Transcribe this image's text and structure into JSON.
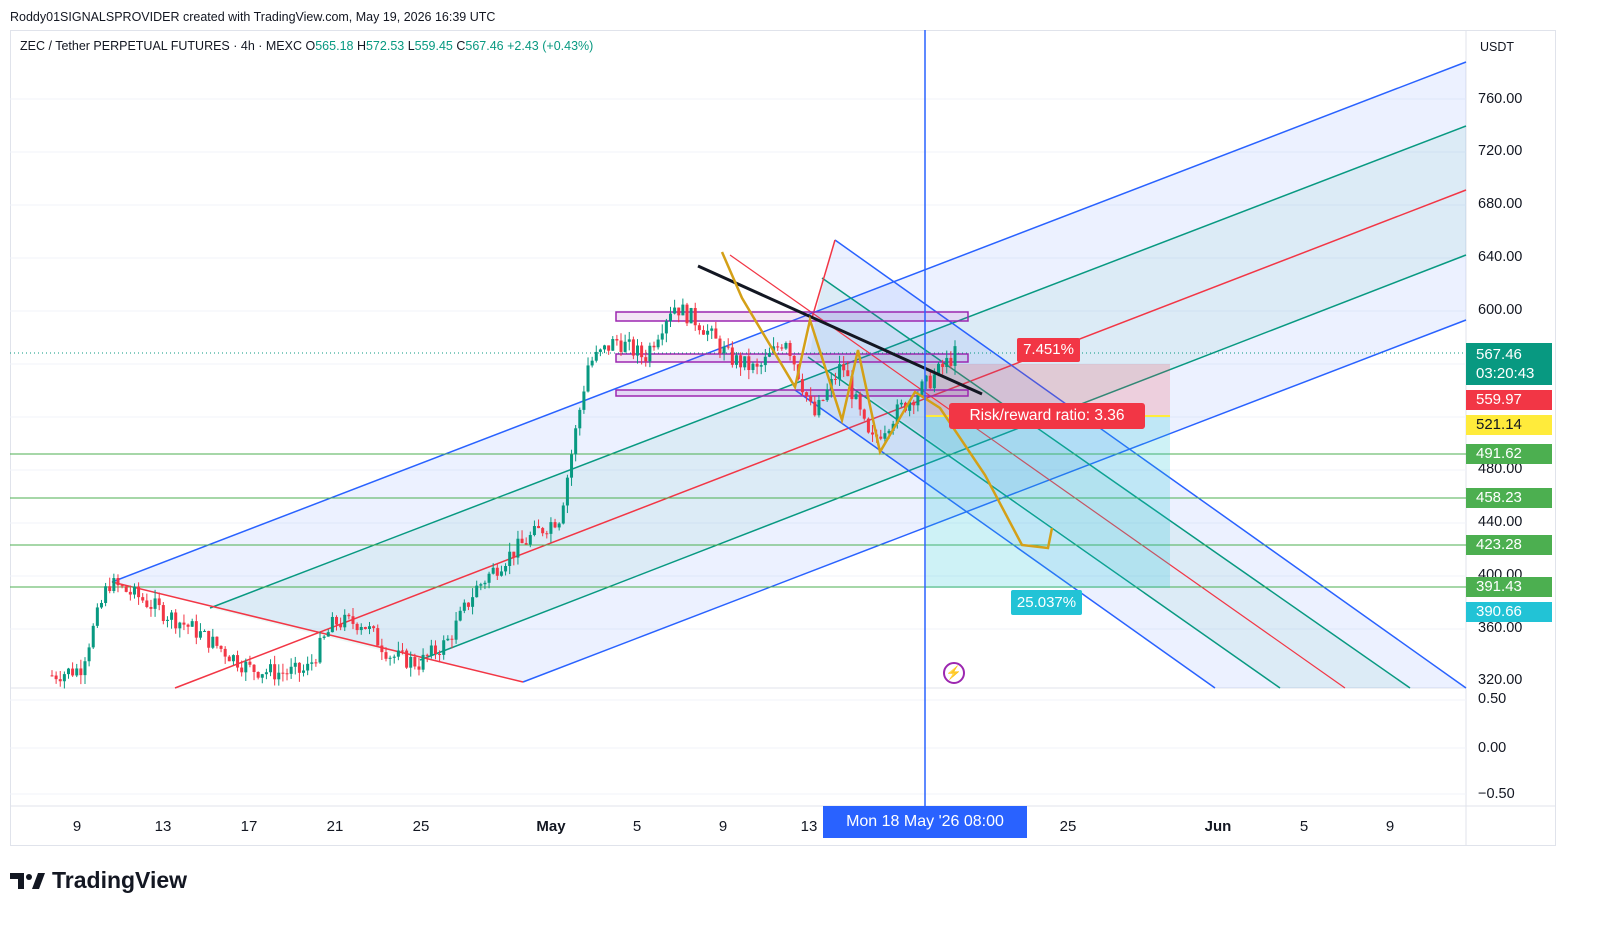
{
  "header": {
    "author_line": "Roddy01SIGNALSPROVIDER created with TradingView.com, May 19, 2026 16:39 UTC"
  },
  "symbol": {
    "name": "ZEC / Tether PERPETUAL FUTURES · 4h · MEXC",
    "open_label": "O",
    "open": "565.18",
    "high_label": "H",
    "high": "572.53",
    "low_label": "L",
    "low": "559.45",
    "close_label": "C",
    "close": "567.46",
    "change": "+2.43 (+0.43%)"
  },
  "price_axis": {
    "currency": "USDT",
    "ticks": [
      "760.00",
      "720.00",
      "680.00",
      "640.00",
      "600.00",
      "480.00",
      "440.00",
      "400.00",
      "360.00",
      "320.00"
    ]
  },
  "oscillator_axis": {
    "ticks": [
      "0.50",
      "0.00",
      "−0.50"
    ]
  },
  "time_axis": {
    "ticks": [
      "9",
      "13",
      "17",
      "21",
      "25",
      "May",
      "5",
      "9",
      "13",
      "25",
      "Jun",
      "5",
      "9"
    ],
    "crosshair_label": "Mon 18 May '26   08:00"
  },
  "price_labels": [
    {
      "value": "567.46",
      "sub": "03:20:43",
      "color": "#089981"
    },
    {
      "value": "559.97",
      "color": "#f23645"
    },
    {
      "value": "521.14",
      "color": "#ffeb3b"
    },
    {
      "value": "491.62",
      "color": "#4caf50"
    },
    {
      "value": "458.23",
      "color": "#4caf50"
    },
    {
      "value": "423.28",
      "color": "#4caf50"
    },
    {
      "value": "391.43",
      "color": "#4caf50"
    },
    {
      "value": "390.66",
      "color": "#22c3d6"
    }
  ],
  "position_tool": {
    "stop_pct": "7.451%",
    "risk_reward": "Risk/reward ratio: 3.36",
    "target_pct": "25.037%"
  },
  "brand": {
    "name": "TradingView"
  },
  "chart_data": {
    "type": "line",
    "title": "ZEC / Tether PERPETUAL FUTURES · 4h · MEXC",
    "ylim": [
      320,
      780
    ],
    "horizontal_levels": [
      491.62,
      458.23,
      423.28,
      391.43
    ],
    "last_price": 567.46,
    "closes": [
      {
        "x": "Apr 8",
        "y": 325
      },
      {
        "x": "Apr 9",
        "y": 330
      },
      {
        "x": "Apr 10",
        "y": 395
      },
      {
        "x": "Apr 12",
        "y": 385
      },
      {
        "x": "Apr 14",
        "y": 372
      },
      {
        "x": "Apr 16",
        "y": 360
      },
      {
        "x": "Apr 18",
        "y": 345
      },
      {
        "x": "Apr 20",
        "y": 330
      },
      {
        "x": "Apr 22",
        "y": 327
      },
      {
        "x": "Apr 24",
        "y": 328
      },
      {
        "x": "Apr 26",
        "y": 365
      },
      {
        "x": "Apr 28",
        "y": 365
      },
      {
        "x": "Apr 29",
        "y": 340
      },
      {
        "x": "Apr 30",
        "y": 334
      },
      {
        "x": "May 1",
        "y": 350
      },
      {
        "x": "May 2",
        "y": 390
      },
      {
        "x": "May 3",
        "y": 412
      },
      {
        "x": "May 4",
        "y": 430
      },
      {
        "x": "May 5",
        "y": 445
      },
      {
        "x": "May 6",
        "y": 560
      },
      {
        "x": "May 7",
        "y": 578
      },
      {
        "x": "May 8",
        "y": 565
      },
      {
        "x": "May 9",
        "y": 605
      },
      {
        "x": "May 10",
        "y": 590
      },
      {
        "x": "May 11",
        "y": 565
      },
      {
        "x": "May 12",
        "y": 555
      },
      {
        "x": "May 13",
        "y": 580
      },
      {
        "x": "May 14",
        "y": 520
      },
      {
        "x": "May 15",
        "y": 560
      },
      {
        "x": "May 16",
        "y": 500
      },
      {
        "x": "May 17",
        "y": 525
      },
      {
        "x": "May 18",
        "y": 545
      },
      {
        "x": "May 19",
        "y": 567.46
      }
    ]
  }
}
